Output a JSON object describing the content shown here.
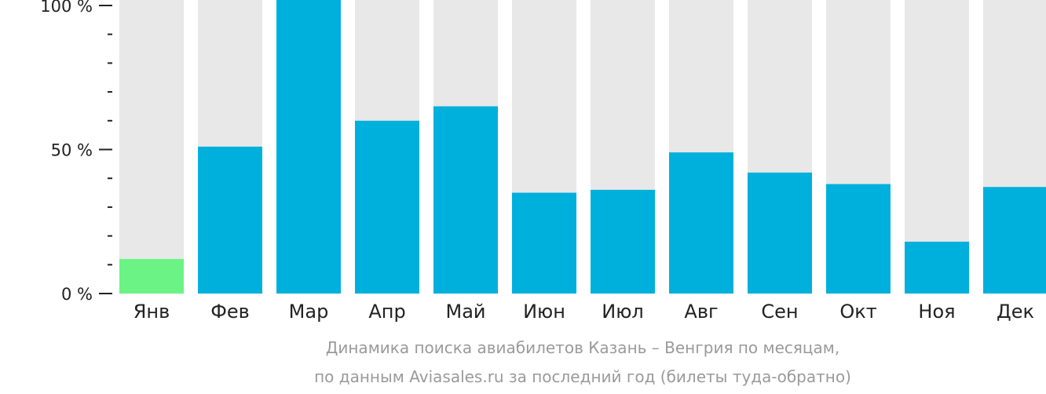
{
  "chart_data": {
    "type": "bar",
    "categories": [
      "Янв",
      "Фев",
      "Мар",
      "Апр",
      "Май",
      "Июн",
      "Июл",
      "Авг",
      "Сен",
      "Окт",
      "Ноя",
      "Дек"
    ],
    "values": [
      12,
      51,
      100,
      60,
      65,
      35,
      36,
      49,
      42,
      38,
      18,
      37
    ],
    "ylim": [
      0,
      100
    ],
    "yticks": [
      {
        "value": 100,
        "label": "100 %"
      },
      {
        "value": 50,
        "label": "50 %"
      },
      {
        "value": 0,
        "label": "0 %"
      }
    ],
    "minor_tick_step": 10,
    "background_bars": true,
    "highlight_index": 0,
    "colors": {
      "bar": "#00b0dc",
      "highlight": "#6cf385",
      "background": "#e8e8e8",
      "axis": "#222222"
    },
    "caption_lines": [
      "Динамика поиска авиабилетов Казань – Венгрия по месяцам,",
      "по данным Aviasales.ru за последний год (билеты туда-обратно)"
    ]
  }
}
